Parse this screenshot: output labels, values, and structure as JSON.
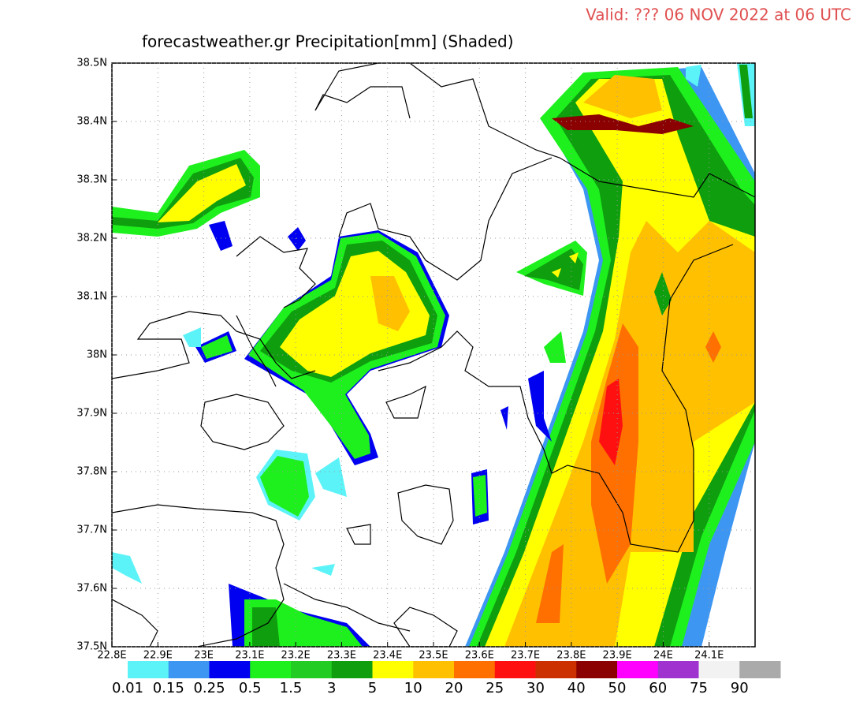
{
  "header": {
    "valid": "Valid: ??? 06 NOV 2022 at 06 UTC",
    "title": "forecastweather.gr Precipitation[mm] (Shaded)"
  },
  "map": {
    "lonlim": [
      22.8,
      24.2
    ],
    "latlim": [
      37.5,
      38.5
    ],
    "lon_ticks": [
      {
        "value": 22.8,
        "label": "22.8E"
      },
      {
        "value": 22.9,
        "label": "22.9E"
      },
      {
        "value": 23,
        "label": "23E"
      },
      {
        "value": 23.1,
        "label": "23.1E"
      },
      {
        "value": 23.2,
        "label": "23.2E"
      },
      {
        "value": 23.3,
        "label": "23.3E"
      },
      {
        "value": 23.4,
        "label": "23.4E"
      },
      {
        "value": 23.5,
        "label": "23.5E"
      },
      {
        "value": 23.6,
        "label": "23.6E"
      },
      {
        "value": 23.7,
        "label": "23.7E"
      },
      {
        "value": 23.8,
        "label": "23.8E"
      },
      {
        "value": 23.9,
        "label": "23.9E"
      },
      {
        "value": 24,
        "label": "24E"
      },
      {
        "value": 24.1,
        "label": "24.1E"
      }
    ],
    "lat_ticks": [
      {
        "value": 37.5,
        "label": "37.5N"
      },
      {
        "value": 37.6,
        "label": "37.6N"
      },
      {
        "value": 37.7,
        "label": "37.7N"
      },
      {
        "value": 37.8,
        "label": "37.8N"
      },
      {
        "value": 37.9,
        "label": "37.9N"
      },
      {
        "value": 38,
        "label": "38N"
      },
      {
        "value": 38.1,
        "label": "38.1N"
      },
      {
        "value": 38.2,
        "label": "38.2N"
      },
      {
        "value": 38.3,
        "label": "38.3N"
      },
      {
        "value": 38.4,
        "label": "38.4N"
      },
      {
        "value": 38.5,
        "label": "38.5N"
      }
    ]
  },
  "colorbar": {
    "levels": [
      0.01,
      0.15,
      0.25,
      0.5,
      1.5,
      3,
      5,
      10,
      20,
      25,
      30,
      40,
      50,
      60,
      75,
      90
    ],
    "colors": [
      "#5cf3f8",
      "#3d96f2",
      "#0000f0",
      "#1ef01e",
      "#22cc22",
      "#0e9e0e",
      "#ffff00",
      "#ffc000",
      "#ff7000",
      "#ff1010",
      "#cc3000",
      "#8b0000",
      "#ff00ff",
      "#a032d0",
      "#f2f2f2",
      "#aaaaaa"
    ]
  }
}
